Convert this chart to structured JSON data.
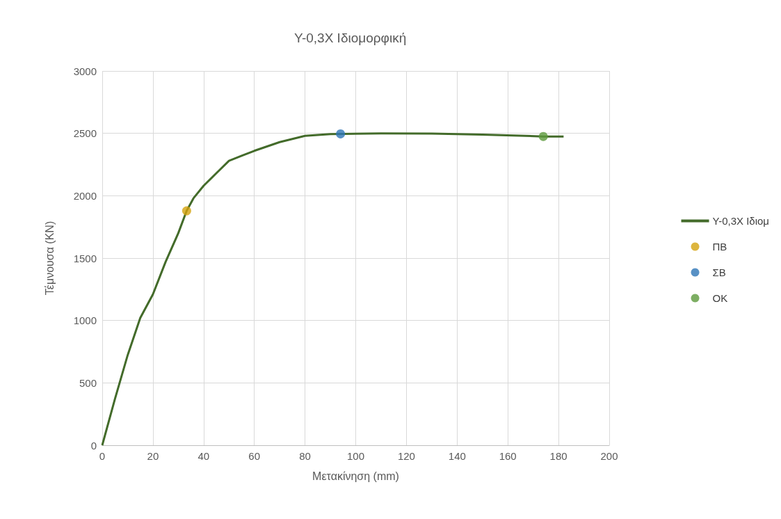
{
  "chart_data": {
    "type": "line",
    "title": "Y-0,3X Ιδιομορφική",
    "xlabel": "Μετακίνηση (mm)",
    "ylabel": "Τέμνουσα (KN)",
    "xlim": [
      0,
      200
    ],
    "xticks": [
      0,
      20,
      40,
      60,
      80,
      100,
      120,
      140,
      160,
      180,
      200
    ],
    "ylim": [
      0,
      3000
    ],
    "yticks": [
      0,
      500,
      1000,
      1500,
      2000,
      2500,
      3000
    ],
    "grid": true,
    "legend": "right",
    "series": [
      {
        "name": "Y-0,3X Ιδιομ",
        "color": "#436b2a",
        "marker": "none",
        "x": [
          0,
          5,
          10,
          15,
          20,
          25,
          30,
          33.3,
          36,
          40,
          45,
          50,
          55,
          60,
          70,
          80,
          90,
          110,
          130,
          150,
          174,
          182
        ],
        "values": [
          0,
          370,
          720,
          1020,
          1210,
          1470,
          1700,
          1879,
          1980,
          2080,
          2180,
          2280,
          2320,
          2360,
          2430,
          2480,
          2494,
          2500,
          2498,
          2490,
          2475,
          2475
        ]
      },
      {
        "name": "ΠΒ",
        "type": "scatter",
        "color": "#d4a20e",
        "marker": "circle",
        "x": [
          33.3
        ],
        "values": [
          1879
        ]
      },
      {
        "name": "ΣΒ",
        "type": "scatter",
        "color": "#2e75b6",
        "marker": "circle",
        "x": [
          94
        ],
        "values": [
          2496
        ]
      },
      {
        "name": "ΟΚ",
        "type": "scatter",
        "color": "#5c9a3c",
        "marker": "circle",
        "x": [
          174
        ],
        "values": [
          2475
        ]
      }
    ]
  }
}
